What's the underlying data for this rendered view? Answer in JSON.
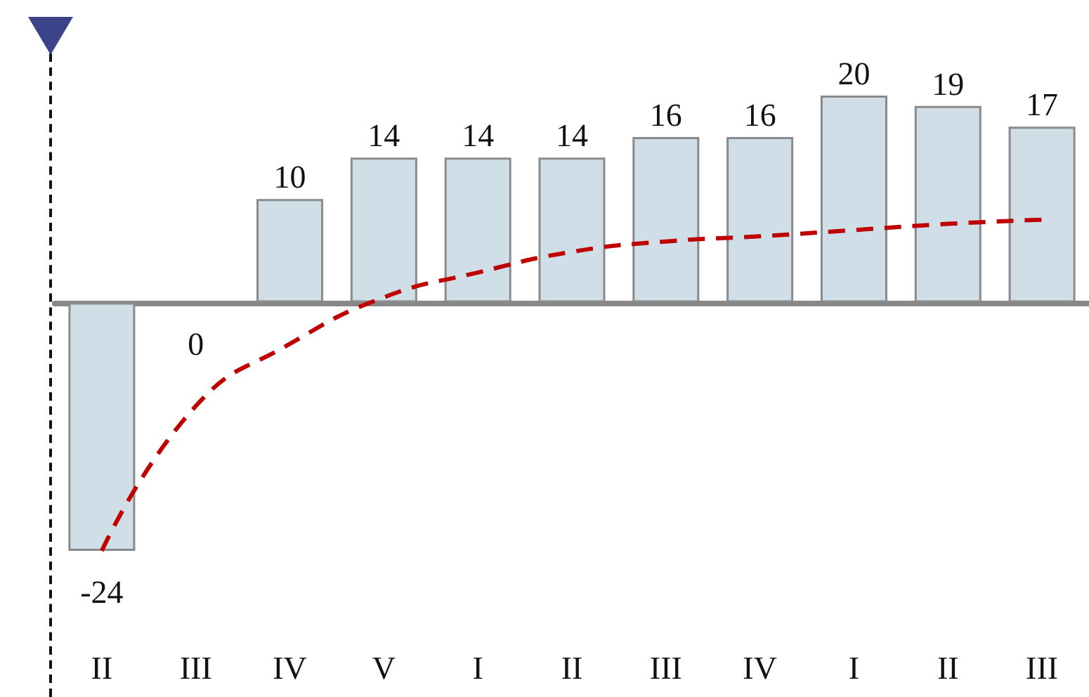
{
  "chart_data": {
    "type": "bar",
    "categories": [
      "II",
      "III",
      "IV",
      "V",
      "I",
      "II",
      "III",
      "IV",
      "I",
      "II",
      "III"
    ],
    "series": [
      {
        "color": "#d0dfe7",
        "values": [
          -24,
          0,
          10,
          14,
          14,
          14,
          16,
          16,
          20,
          19,
          17
        ],
        "value_labels": [
          "-24",
          "0",
          "10",
          "14",
          "14",
          "14",
          "16",
          "16",
          "20",
          "19",
          "17"
        ]
      },
      {
        "type": "line",
        "color": "#c00000",
        "line_style": "dashed",
        "marker": "none",
        "values": [
          -24,
          -10,
          -4,
          0.5,
          2.9,
          4.9,
          5.9,
          6.4,
          7,
          7.6,
          8
        ]
      }
    ]
  }
}
